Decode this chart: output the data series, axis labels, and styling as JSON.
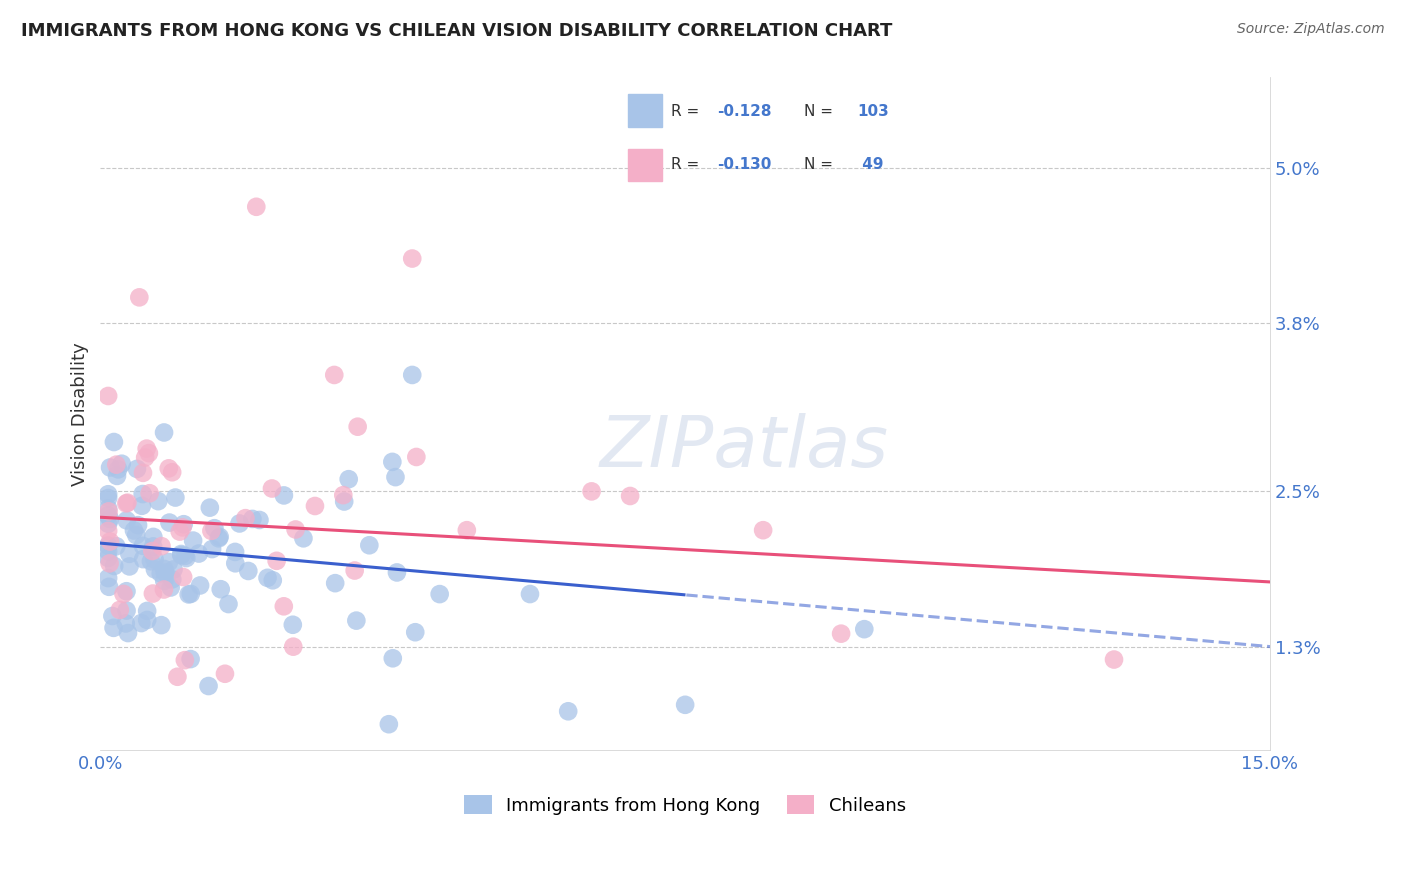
{
  "title": "IMMIGRANTS FROM HONG KONG VS CHILEAN VISION DISABILITY CORRELATION CHART",
  "source": "Source: ZipAtlas.com",
  "ylabel_label": "Vision Disability",
  "legend_labels": [
    "Immigrants from Hong Kong",
    "Chileans"
  ],
  "r_hk": -0.128,
  "n_hk": 103,
  "r_ch": -0.13,
  "n_ch": 49,
  "hk_color": "#a8c4e8",
  "ch_color": "#f4afc8",
  "hk_line_color": "#3a5fcd",
  "ch_line_color": "#e8507a",
  "background_color": "#ffffff",
  "grid_color": "#c8c8c8",
  "title_fontsize": 13,
  "source_fontsize": 10,
  "xlim": [
    0.0,
    0.15
  ],
  "ylim": [
    0.005,
    0.057
  ],
  "ytick_vals": [
    0.013,
    0.025,
    0.038,
    0.05
  ],
  "ytick_labels": [
    "1.3%",
    "2.5%",
    "3.8%",
    "5.0%"
  ],
  "xtick_vals": [
    0.0,
    0.15
  ],
  "xtick_labels": [
    "0.0%",
    "15.0%"
  ],
  "hk_line_start_y": 0.021,
  "hk_line_end_y": 0.013,
  "hk_line_x_end": 0.15,
  "ch_line_start_y": 0.023,
  "ch_line_end_y": 0.018,
  "ch_line_x_end": 0.15,
  "hk_solid_upto": 0.075,
  "zipatlas_text": "ZIPatlas",
  "zipatlas_color": "#d0d8e8"
}
